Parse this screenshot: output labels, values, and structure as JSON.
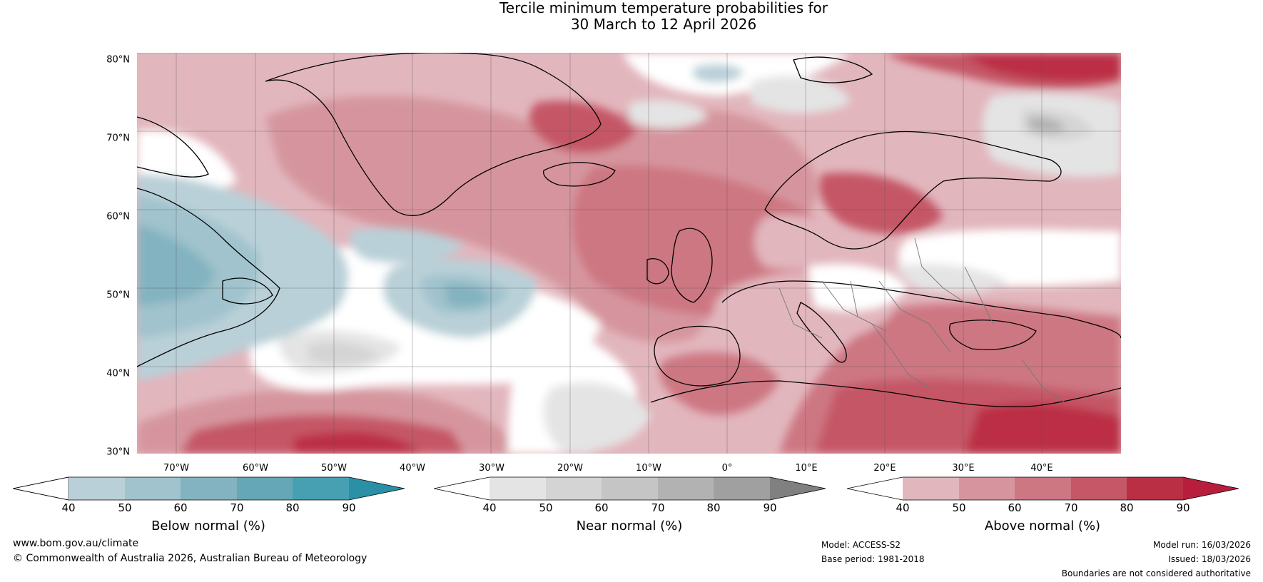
{
  "title": {
    "line1": "Tercile minimum temperature probabilities for",
    "line2": "30 March to 12 April 2026"
  },
  "map": {
    "lat_labels": [
      "80°N",
      "70°N",
      "60°N",
      "50°N",
      "40°N",
      "30°N"
    ],
    "lon_labels": [
      "70°W",
      "60°W",
      "50°W",
      "40°W",
      "30°W",
      "20°W",
      "10°W",
      "0°",
      "10°E",
      "20°E",
      "30°E",
      "40°E"
    ],
    "region": "North Atlantic, Greenland, Europe and North Africa"
  },
  "colorbars": [
    {
      "label": "Below normal (%)",
      "ticks": [
        "40",
        "50",
        "60",
        "70",
        "80",
        "90"
      ],
      "colors": [
        "#ffffff",
        "#b9d0d8",
        "#a0c3cd",
        "#83b3c0",
        "#65a7b6",
        "#46a0b2",
        "#2b8fa6"
      ]
    },
    {
      "label": "Near normal (%)",
      "ticks": [
        "40",
        "50",
        "60",
        "70",
        "80",
        "90"
      ],
      "colors": [
        "#ffffff",
        "#e4e4e4",
        "#d4d4d4",
        "#c5c5c5",
        "#b2b2b2",
        "#a0a0a0",
        "#808080"
      ]
    },
    {
      "label": "Above normal (%)",
      "ticks": [
        "40",
        "50",
        "60",
        "70",
        "80",
        "90"
      ],
      "colors": [
        "#ffffff",
        "#e2b6bd",
        "#d6959e",
        "#cd7782",
        "#c55766",
        "#bb2f45",
        "#b81e3c"
      ]
    }
  ],
  "footer": {
    "website": "www.bom.gov.au/climate",
    "copyright": "© Commonwealth of Australia 2026, Australian Bureau of Meteorology",
    "model": "Model: ACCESS-S2",
    "base_period": "Base period: 1981-2018",
    "model_run": "Model run: 16/03/2026",
    "issued": "Issued: 18/03/2026",
    "disclaimer": "Boundaries are not considered authoritative"
  }
}
